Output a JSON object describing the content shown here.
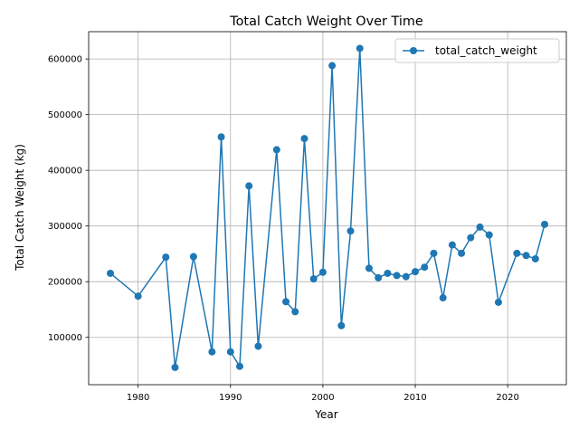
{
  "chart_data": {
    "type": "line",
    "title": "Total Catch Weight Over Time",
    "xlabel": "Year",
    "ylabel": "Total Catch Weight (kg)",
    "xlim": [
      1974.65,
      2026.35
    ],
    "ylim": [
      15000,
      649000
    ],
    "xticks": [
      1980,
      1990,
      2000,
      2010,
      2020
    ],
    "yticks": [
      100000,
      200000,
      300000,
      400000,
      500000,
      600000
    ],
    "grid": true,
    "legend_position": "top-right",
    "colors": {
      "series": "#1f77b4",
      "grid": "#b0b0b0",
      "axis": "#000000"
    },
    "series": [
      {
        "name": "total_catch_weight",
        "marker": "circle",
        "x": [
          1977,
          1980,
          1983,
          1984,
          1986,
          1988,
          1989,
          1990,
          1991,
          1992,
          1993,
          1995,
          1996,
          1997,
          1998,
          1999,
          2000,
          2001,
          2002,
          2003,
          2004,
          2005,
          2006,
          2007,
          2008,
          2009,
          2010,
          2011,
          2012,
          2013,
          2014,
          2015,
          2016,
          2017,
          2018,
          2019,
          2021,
          2022,
          2023,
          2024
        ],
        "y": [
          215000,
          174000,
          244000,
          46000,
          245000,
          74000,
          460000,
          74000,
          48000,
          372000,
          84000,
          437000,
          164000,
          146000,
          457000,
          205000,
          217000,
          588000,
          121000,
          291000,
          619000,
          224000,
          207000,
          215000,
          211000,
          209000,
          218000,
          226000,
          251000,
          171000,
          266000,
          251000,
          279000,
          298000,
          284000,
          163000,
          251000,
          247000,
          241000,
          303000
        ]
      }
    ]
  }
}
